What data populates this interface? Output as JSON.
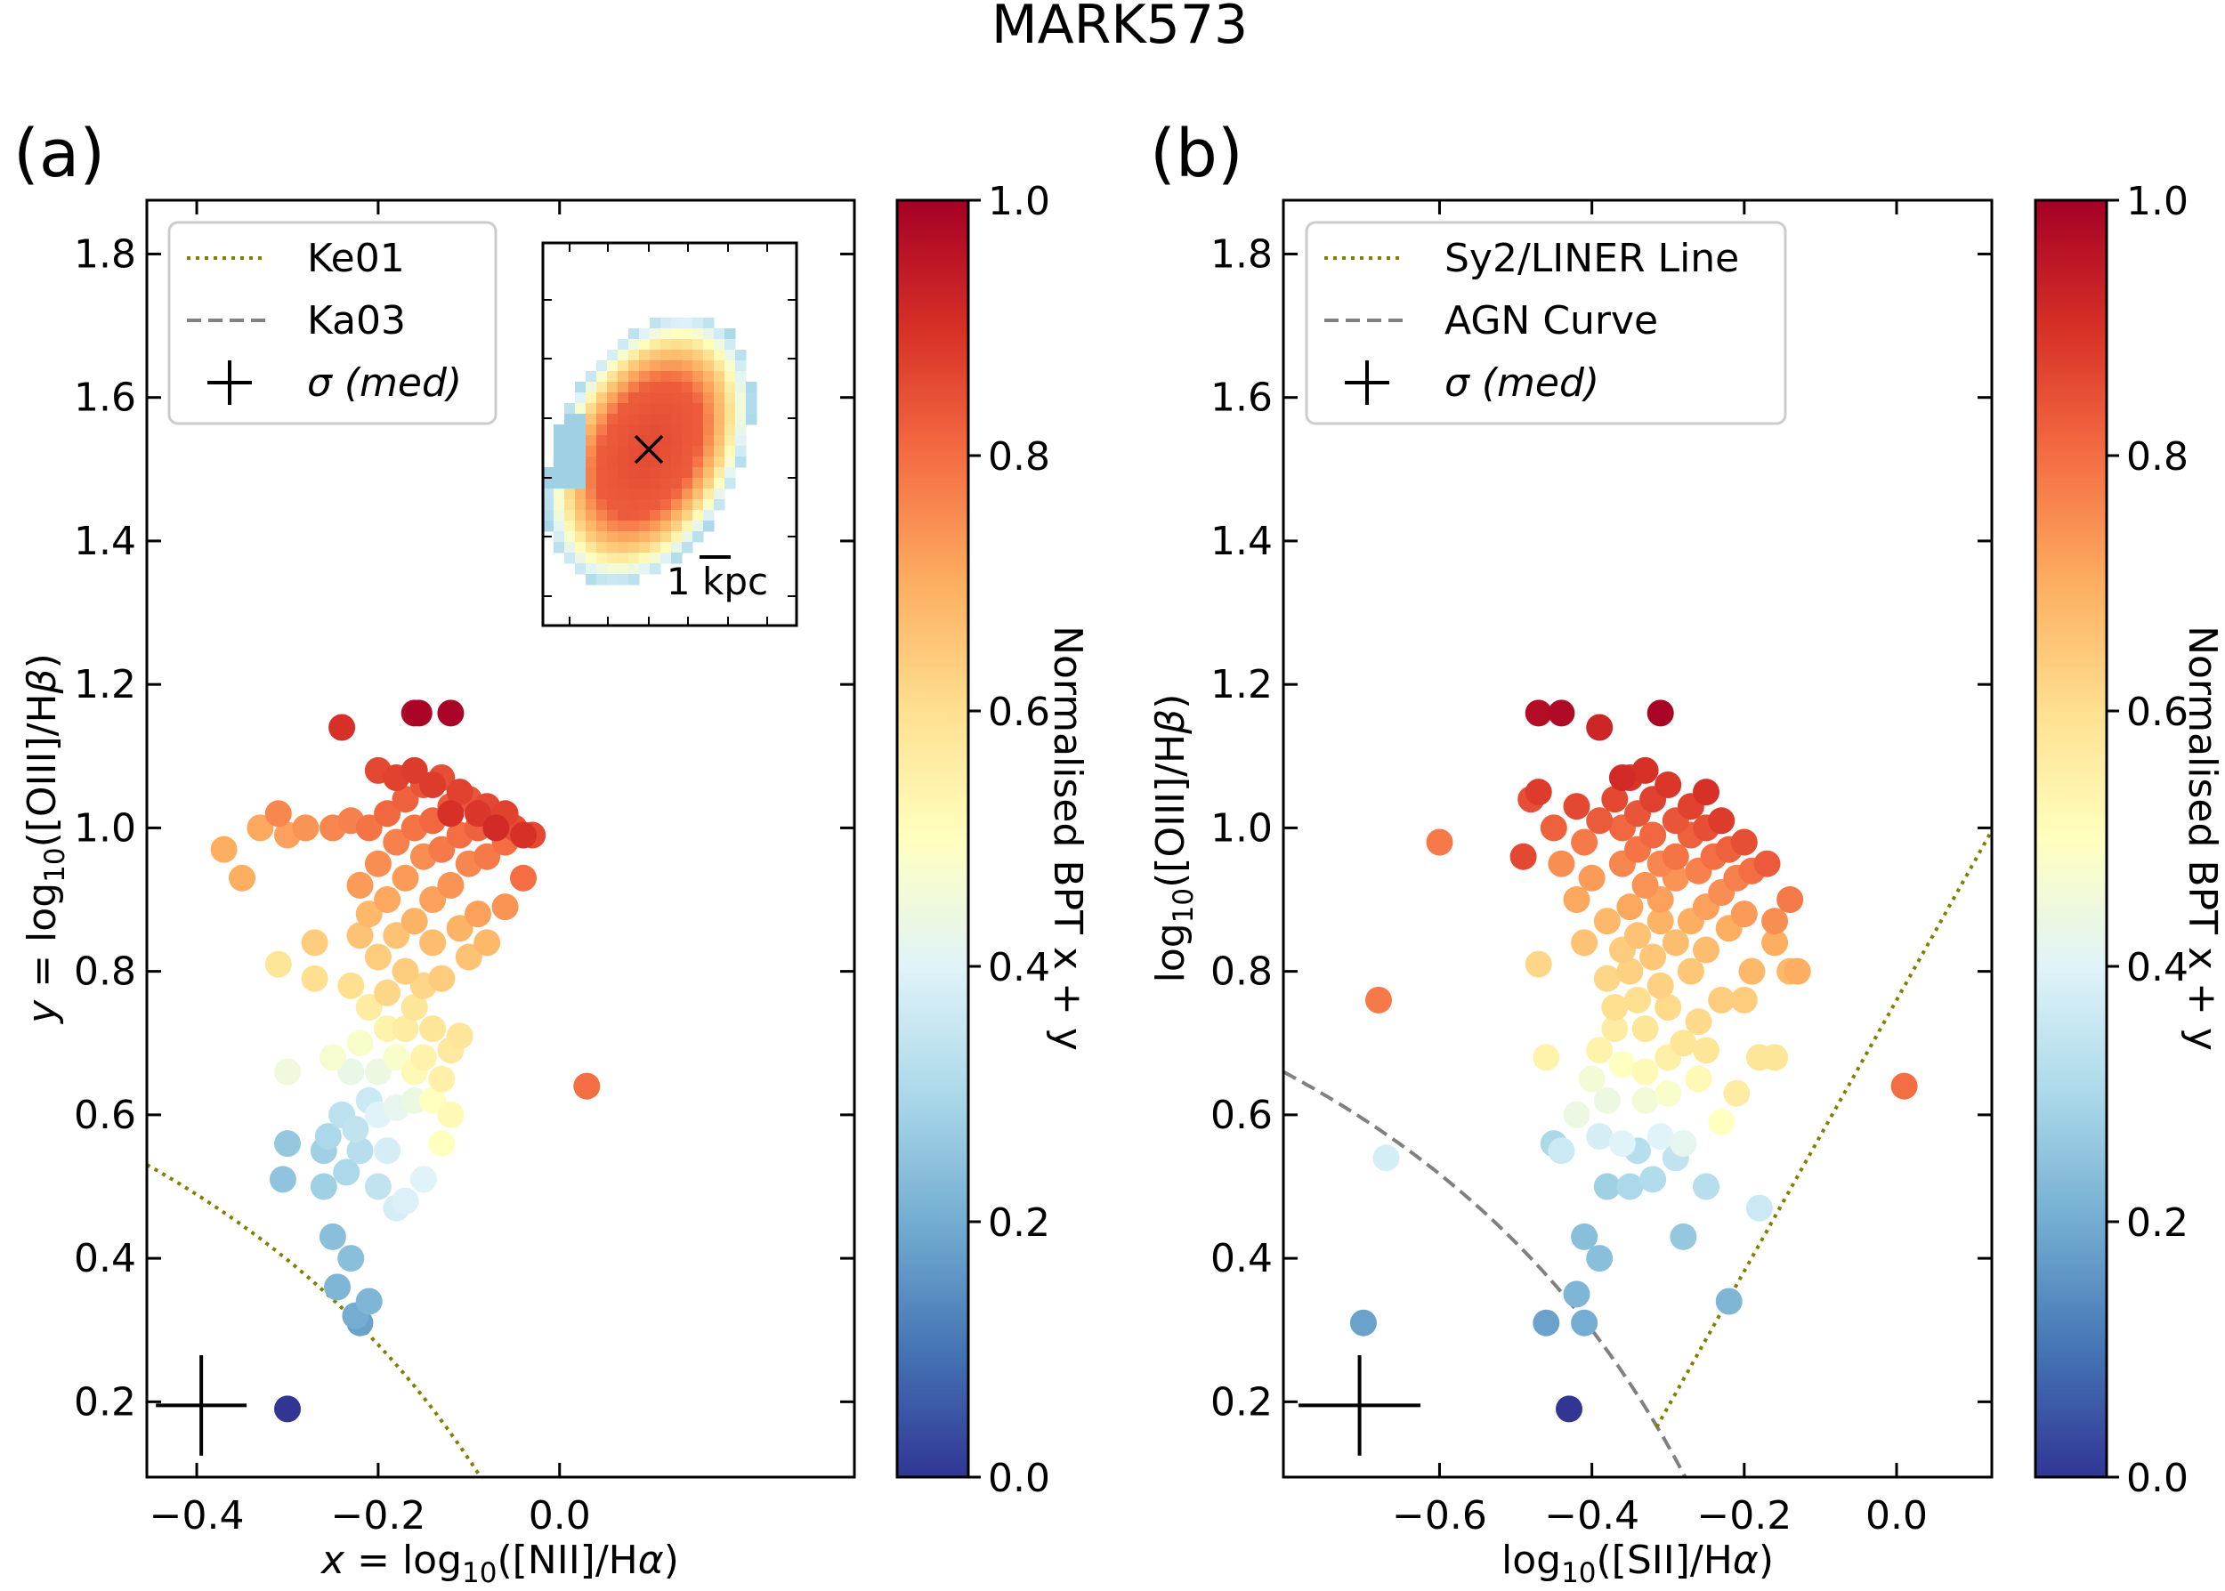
{
  "title": "MARK573",
  "panel_labels": [
    "(a)",
    "(b)"
  ],
  "colorbar": {
    "label": "Normalised BPT x + y",
    "ticks": [
      "0.0",
      "0.2",
      "0.4",
      "0.6",
      "0.8",
      "1.0"
    ],
    "range": [
      0,
      1
    ]
  },
  "inset": {
    "scale_label": "1 kpc"
  },
  "chart_data": [
    {
      "type": "scatter",
      "panel": "(a)",
      "xlabel": "x = log10([NII]/Hα)",
      "ylabel": "y = log10([OIII]/Hβ)",
      "xlim": [
        -0.455,
        0.325
      ],
      "ylim": [
        0.095,
        1.875
      ],
      "xticks": [
        -0.4,
        -0.2,
        0.0
      ],
      "xtick_labels": [
        "−0.4",
        "−0.2",
        "0.0"
      ],
      "yticks": [
        0.2,
        0.4,
        0.6,
        0.8,
        1.0,
        1.2,
        1.4,
        1.6,
        1.8
      ],
      "ytick_labels": [
        "0.2",
        "0.4",
        "0.6",
        "0.8",
        "1.0",
        "1.2",
        "1.4",
        "1.6",
        "1.8"
      ],
      "legend": {
        "location": "upper left",
        "entries": [
          "Ke01",
          "Ka03",
          "σ (med)"
        ]
      },
      "curves": [
        {
          "name": "Ke01",
          "style": "dotted",
          "color": "#808000",
          "equation": "0.61/(x-0.47)+1.19"
        }
      ],
      "error_bar": {
        "x": -0.395,
        "y": 0.195,
        "xerr": 0.05,
        "yerr": 0.07
      },
      "points": [
        [
          -0.3,
          0.19,
          0.0
        ],
        [
          -0.22,
          0.31,
          0.18
        ],
        [
          -0.225,
          0.32,
          0.2
        ],
        [
          -0.21,
          0.34,
          0.22
        ],
        [
          -0.245,
          0.36,
          0.22
        ],
        [
          -0.25,
          0.43,
          0.24
        ],
        [
          -0.23,
          0.4,
          0.24
        ],
        [
          -0.305,
          0.51,
          0.25
        ],
        [
          -0.3,
          0.56,
          0.26
        ],
        [
          -0.26,
          0.5,
          0.28
        ],
        [
          -0.26,
          0.55,
          0.28
        ],
        [
          -0.235,
          0.52,
          0.3
        ],
        [
          -0.255,
          0.57,
          0.3
        ],
        [
          -0.22,
          0.55,
          0.32
        ],
        [
          -0.24,
          0.6,
          0.33
        ],
        [
          -0.2,
          0.5,
          0.34
        ],
        [
          -0.225,
          0.58,
          0.34
        ],
        [
          -0.21,
          0.62,
          0.36
        ],
        [
          -0.18,
          0.47,
          0.38
        ],
        [
          -0.17,
          0.48,
          0.39
        ],
        [
          -0.19,
          0.55,
          0.38
        ],
        [
          -0.15,
          0.51,
          0.4
        ],
        [
          -0.2,
          0.6,
          0.4
        ],
        [
          -0.18,
          0.61,
          0.42
        ],
        [
          -0.23,
          0.66,
          0.43
        ],
        [
          -0.2,
          0.66,
          0.44
        ],
        [
          -0.16,
          0.62,
          0.44
        ],
        [
          -0.3,
          0.66,
          0.45
        ],
        [
          -0.25,
          0.68,
          0.47
        ],
        [
          -0.22,
          0.7,
          0.48
        ],
        [
          -0.18,
          0.68,
          0.48
        ],
        [
          -0.13,
          0.56,
          0.5
        ],
        [
          -0.14,
          0.62,
          0.5
        ],
        [
          -0.16,
          0.66,
          0.52
        ],
        [
          -0.12,
          0.6,
          0.52
        ],
        [
          -0.19,
          0.72,
          0.54
        ],
        [
          -0.15,
          0.68,
          0.54
        ],
        [
          -0.13,
          0.65,
          0.55
        ],
        [
          -0.21,
          0.75,
          0.56
        ],
        [
          -0.17,
          0.72,
          0.56
        ],
        [
          -0.12,
          0.69,
          0.57
        ],
        [
          -0.16,
          0.75,
          0.58
        ],
        [
          -0.14,
          0.72,
          0.58
        ],
        [
          -0.11,
          0.71,
          0.58
        ],
        [
          -0.31,
          0.81,
          0.58
        ],
        [
          -0.27,
          0.79,
          0.6
        ],
        [
          -0.23,
          0.78,
          0.6
        ],
        [
          -0.19,
          0.77,
          0.62
        ],
        [
          -0.15,
          0.78,
          0.62
        ],
        [
          -0.2,
          0.82,
          0.64
        ],
        [
          -0.17,
          0.8,
          0.64
        ],
        [
          -0.13,
          0.79,
          0.64
        ],
        [
          -0.27,
          0.84,
          0.64
        ],
        [
          -0.1,
          0.82,
          0.66
        ],
        [
          -0.22,
          0.85,
          0.66
        ],
        [
          -0.18,
          0.85,
          0.66
        ],
        [
          -0.14,
          0.84,
          0.67
        ],
        [
          -0.08,
          0.84,
          0.68
        ],
        [
          -0.21,
          0.88,
          0.68
        ],
        [
          -0.16,
          0.87,
          0.69
        ],
        [
          -0.11,
          0.86,
          0.69
        ],
        [
          -0.35,
          0.93,
          0.7
        ],
        [
          -0.37,
          0.97,
          0.7
        ],
        [
          -0.33,
          1.0,
          0.71
        ],
        [
          -0.19,
          0.9,
          0.71
        ],
        [
          -0.14,
          0.9,
          0.72
        ],
        [
          -0.09,
          0.88,
          0.72
        ],
        [
          -0.3,
          0.99,
          0.72
        ],
        [
          -0.22,
          0.92,
          0.73
        ],
        [
          -0.17,
          0.93,
          0.73
        ],
        [
          -0.12,
          0.92,
          0.74
        ],
        [
          -0.06,
          0.89,
          0.74
        ],
        [
          -0.28,
          1.0,
          0.74
        ],
        [
          -0.2,
          0.95,
          0.75
        ],
        [
          -0.15,
          0.96,
          0.75
        ],
        [
          -0.1,
          0.95,
          0.76
        ],
        [
          -0.25,
          1.0,
          0.76
        ],
        [
          -0.31,
          1.02,
          0.76
        ],
        [
          -0.23,
          1.01,
          0.77
        ],
        [
          -0.18,
          0.98,
          0.77
        ],
        [
          -0.13,
          0.97,
          0.78
        ],
        [
          -0.08,
          0.96,
          0.78
        ],
        [
          -0.21,
          1.0,
          0.79
        ],
        [
          -0.16,
          1.0,
          0.79
        ],
        [
          -0.11,
          0.99,
          0.8
        ],
        [
          -0.06,
          0.98,
          0.8
        ],
        [
          -0.04,
          0.93,
          0.8
        ],
        [
          0.03,
          0.64,
          0.8
        ],
        [
          -0.19,
          1.02,
          0.81
        ],
        [
          -0.14,
          1.01,
          0.81
        ],
        [
          -0.09,
          1.0,
          0.82
        ],
        [
          -0.17,
          1.04,
          0.82
        ],
        [
          -0.12,
          1.03,
          0.83
        ],
        [
          -0.07,
          1.01,
          0.83
        ],
        [
          -0.15,
          1.06,
          0.84
        ],
        [
          -0.1,
          1.04,
          0.84
        ],
        [
          -0.05,
          1.0,
          0.85
        ],
        [
          -0.13,
          1.07,
          0.85
        ],
        [
          -0.08,
          1.03,
          0.86
        ],
        [
          -0.03,
          0.99,
          0.86
        ],
        [
          -0.11,
          1.05,
          0.87
        ],
        [
          -0.06,
          1.02,
          0.87
        ],
        [
          -0.2,
          1.08,
          0.86
        ],
        [
          -0.18,
          1.07,
          0.87
        ],
        [
          -0.16,
          1.08,
          0.88
        ],
        [
          -0.14,
          1.06,
          0.88
        ],
        [
          -0.09,
          1.02,
          0.89
        ],
        [
          -0.04,
          0.99,
          0.9
        ],
        [
          -0.12,
          1.02,
          0.9
        ],
        [
          -0.07,
          1.0,
          0.91
        ],
        [
          -0.24,
          1.14,
          0.9
        ],
        [
          -0.16,
          1.16,
          0.98
        ],
        [
          -0.155,
          1.16,
          0.99
        ],
        [
          -0.12,
          1.16,
          0.99
        ]
      ]
    },
    {
      "type": "scatter",
      "panel": "(b)",
      "xlabel": "log10([SII]/Hα)",
      "ylabel": "log10([OIII]/Hβ)",
      "xlim": [
        -0.805,
        0.125
      ],
      "ylim": [
        0.095,
        1.875
      ],
      "xticks": [
        -0.6,
        -0.4,
        -0.2,
        0.0
      ],
      "xtick_labels": [
        "−0.6",
        "−0.4",
        "−0.2",
        "0.0"
      ],
      "yticks": [
        0.2,
        0.4,
        0.6,
        0.8,
        1.0,
        1.2,
        1.4,
        1.6,
        1.8
      ],
      "ytick_labels": [
        "0.2",
        "0.4",
        "0.6",
        "0.8",
        "1.0",
        "1.2",
        "1.4",
        "1.6",
        "1.8"
      ],
      "legend": {
        "location": "upper left",
        "entries": [
          "Sy2/LINER Line",
          "AGN Curve",
          "σ (med)"
        ]
      },
      "curves": [
        {
          "name": "Sy2/LINER Line",
          "style": "dotted",
          "color": "#808000",
          "equation": "1.89x+0.76, x>=-0.315"
        },
        {
          "name": "AGN Curve",
          "style": "dashed",
          "color": "#808080",
          "equation": "0.72/(x-0.32)+1.30"
        }
      ],
      "error_bar": {
        "x": -0.705,
        "y": 0.195,
        "xerr": 0.08,
        "yerr": 0.07
      },
      "points": [
        [
          -0.43,
          0.19,
          0.0
        ],
        [
          -0.7,
          0.31,
          0.18
        ],
        [
          -0.46,
          0.31,
          0.18
        ],
        [
          -0.41,
          0.31,
          0.2
        ],
        [
          -0.42,
          0.35,
          0.22
        ],
        [
          -0.22,
          0.34,
          0.22
        ],
        [
          -0.41,
          0.43,
          0.24
        ],
        [
          -0.39,
          0.4,
          0.24
        ],
        [
          -0.28,
          0.43,
          0.26
        ],
        [
          -0.38,
          0.5,
          0.28
        ],
        [
          -0.45,
          0.56,
          0.3
        ],
        [
          -0.35,
          0.5,
          0.3
        ],
        [
          -0.32,
          0.51,
          0.31
        ],
        [
          -0.25,
          0.5,
          0.32
        ],
        [
          -0.34,
          0.55,
          0.32
        ],
        [
          -0.29,
          0.54,
          0.34
        ],
        [
          -0.18,
          0.47,
          0.36
        ],
        [
          -0.44,
          0.55,
          0.36
        ],
        [
          -0.67,
          0.54,
          0.38
        ],
        [
          -0.39,
          0.57,
          0.38
        ],
        [
          -0.36,
          0.56,
          0.4
        ],
        [
          -0.31,
          0.57,
          0.4
        ],
        [
          -0.28,
          0.56,
          0.42
        ],
        [
          -0.42,
          0.6,
          0.44
        ],
        [
          -0.38,
          0.62,
          0.44
        ],
        [
          -0.33,
          0.62,
          0.46
        ],
        [
          -0.4,
          0.65,
          0.46
        ],
        [
          -0.3,
          0.63,
          0.48
        ],
        [
          -0.23,
          0.59,
          0.5
        ],
        [
          -0.36,
          0.67,
          0.5
        ],
        [
          -0.33,
          0.66,
          0.52
        ],
        [
          -0.26,
          0.65,
          0.52
        ],
        [
          -0.46,
          0.68,
          0.54
        ],
        [
          -0.39,
          0.69,
          0.54
        ],
        [
          -0.3,
          0.68,
          0.55
        ],
        [
          -0.21,
          0.63,
          0.56
        ],
        [
          -0.37,
          0.72,
          0.56
        ],
        [
          -0.33,
          0.72,
          0.58
        ],
        [
          -0.28,
          0.7,
          0.58
        ],
        [
          -0.25,
          0.69,
          0.58
        ],
        [
          -0.18,
          0.68,
          0.58
        ],
        [
          -0.16,
          0.68,
          0.58
        ],
        [
          -0.37,
          0.75,
          0.6
        ],
        [
          -0.34,
          0.76,
          0.6
        ],
        [
          -0.3,
          0.75,
          0.61
        ],
        [
          -0.26,
          0.73,
          0.61
        ],
        [
          -0.47,
          0.81,
          0.62
        ],
        [
          -0.38,
          0.79,
          0.62
        ],
        [
          -0.35,
          0.8,
          0.63
        ],
        [
          -0.31,
          0.78,
          0.63
        ],
        [
          -0.23,
          0.76,
          0.64
        ],
        [
          -0.2,
          0.76,
          0.64
        ],
        [
          -0.36,
          0.83,
          0.64
        ],
        [
          -0.32,
          0.82,
          0.65
        ],
        [
          -0.27,
          0.8,
          0.65
        ],
        [
          -0.41,
          0.84,
          0.66
        ],
        [
          -0.34,
          0.85,
          0.66
        ],
        [
          -0.29,
          0.84,
          0.67
        ],
        [
          -0.25,
          0.83,
          0.67
        ],
        [
          -0.19,
          0.8,
          0.68
        ],
        [
          -0.14,
          0.8,
          0.68
        ],
        [
          -0.13,
          0.8,
          0.7
        ],
        [
          -0.38,
          0.87,
          0.68
        ],
        [
          -0.31,
          0.87,
          0.69
        ],
        [
          -0.27,
          0.87,
          0.7
        ],
        [
          -0.22,
          0.86,
          0.7
        ],
        [
          -0.16,
          0.84,
          0.7
        ],
        [
          -0.42,
          0.9,
          0.71
        ],
        [
          -0.35,
          0.89,
          0.71
        ],
        [
          -0.31,
          0.9,
          0.72
        ],
        [
          -0.25,
          0.89,
          0.72
        ],
        [
          -0.2,
          0.88,
          0.73
        ],
        [
          -0.4,
          0.93,
          0.73
        ],
        [
          -0.33,
          0.92,
          0.74
        ],
        [
          -0.29,
          0.93,
          0.74
        ],
        [
          -0.23,
          0.91,
          0.75
        ],
        [
          -0.16,
          0.87,
          0.75
        ],
        [
          -0.44,
          0.95,
          0.75
        ],
        [
          -0.36,
          0.95,
          0.76
        ],
        [
          -0.31,
          0.95,
          0.76
        ],
        [
          -0.26,
          0.94,
          0.77
        ],
        [
          -0.21,
          0.93,
          0.77
        ],
        [
          -0.14,
          0.9,
          0.78
        ],
        [
          -0.68,
          0.76,
          0.78
        ],
        [
          -0.6,
          0.98,
          0.78
        ],
        [
          -0.41,
          0.98,
          0.78
        ],
        [
          -0.34,
          0.97,
          0.79
        ],
        [
          -0.29,
          0.96,
          0.79
        ],
        [
          -0.24,
          0.96,
          0.8
        ],
        [
          -0.19,
          0.94,
          0.8
        ],
        [
          -0.36,
          1.0,
          0.81
        ],
        [
          -0.32,
          0.99,
          0.81
        ],
        [
          -0.27,
          0.99,
          0.82
        ],
        [
          -0.22,
          0.97,
          0.82
        ],
        [
          -0.17,
          0.95,
          0.83
        ],
        [
          0.01,
          0.64,
          0.8
        ],
        [
          -0.45,
          1.0,
          0.82
        ],
        [
          -0.39,
          1.01,
          0.83
        ],
        [
          -0.34,
          1.02,
          0.84
        ],
        [
          -0.29,
          1.01,
          0.84
        ],
        [
          -0.25,
          1.0,
          0.85
        ],
        [
          -0.2,
          0.98,
          0.85
        ],
        [
          -0.48,
          1.04,
          0.85
        ],
        [
          -0.42,
          1.03,
          0.86
        ],
        [
          -0.37,
          1.04,
          0.86
        ],
        [
          -0.32,
          1.04,
          0.87
        ],
        [
          -0.27,
          1.03,
          0.87
        ],
        [
          -0.23,
          1.01,
          0.88
        ],
        [
          -0.49,
          0.96,
          0.86
        ],
        [
          -0.47,
          1.05,
          0.88
        ],
        [
          -0.35,
          1.07,
          0.89
        ],
        [
          -0.3,
          1.06,
          0.89
        ],
        [
          -0.25,
          1.05,
          0.9
        ],
        [
          -0.33,
          1.08,
          0.9
        ],
        [
          -0.36,
          1.07,
          0.91
        ],
        [
          -0.39,
          1.14,
          0.92
        ],
        [
          -0.47,
          1.16,
          0.97
        ],
        [
          -0.44,
          1.16,
          0.98
        ],
        [
          -0.31,
          1.16,
          0.99
        ]
      ]
    }
  ]
}
